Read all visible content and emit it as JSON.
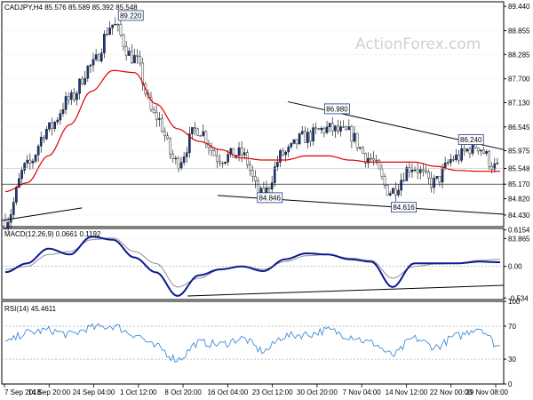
{
  "chart_data": {
    "type": "candlestick",
    "symbol": "CADJPY",
    "timeframe": "H4",
    "header": "CADJPY,H4  85.576 85.589 85.392 85.548",
    "watermark": "ActionForex.com",
    "price_panel": {
      "ylim": [
        84.15,
        89.55
      ],
      "y_ticks": [
        "89.440",
        "88.855",
        "88.285",
        "87.700",
        "87.130",
        "86.545",
        "85.975",
        "85.548",
        "85.170",
        "84.820",
        "84.430",
        "83.865"
      ],
      "last_price": 85.548,
      "level_line": 85.17,
      "ma_values": [
        84.99,
        85.2,
        85.85,
        86.6,
        87.4,
        87.9,
        87.85,
        87.1,
        86.5,
        86.2,
        86.0,
        85.8,
        85.75,
        85.75,
        85.85,
        85.85,
        85.75,
        85.7,
        85.7,
        85.7,
        85.6,
        85.5,
        85.48,
        85.48
      ],
      "close_values": [
        84.3,
        85.6,
        86.5,
        87.2,
        88.0,
        89.0,
        88.2,
        86.8,
        85.7,
        86.5,
        85.8,
        85.9,
        84.9,
        85.9,
        86.3,
        86.5,
        86.4,
        85.8,
        85.0,
        85.6,
        85.2,
        85.8,
        86.1,
        85.55
      ],
      "price_labels": [
        {
          "text": "89.220",
          "value": 89.22,
          "x_frac": 0.257
        },
        {
          "text": "86.980",
          "value": 86.98,
          "x_frac": 0.668
        },
        {
          "text": "86.240",
          "value": 86.24,
          "x_frac": 0.935
        },
        {
          "text": "84.846",
          "value": 84.846,
          "x_frac": 0.534
        },
        {
          "text": "84.616",
          "value": 84.616,
          "x_frac": 0.801
        }
      ],
      "trendlines": [
        {
          "from": [
            0.57,
            87.15
          ],
          "to": [
            1.0,
            86.0
          ]
        },
        {
          "from": [
            0.43,
            84.9
          ],
          "to": [
            1.0,
            84.45
          ]
        },
        {
          "from": [
            0.0,
            84.3
          ],
          "to": [
            0.16,
            84.6
          ]
        }
      ]
    },
    "macd_panel": {
      "label": "MACD(12,26,9) 0.0661 0.1192",
      "ylim": [
        -0.56,
        0.64
      ],
      "y_ticks": [
        "0.6154",
        "0.00",
        "-0.534"
      ],
      "macd_values": [
        -0.1,
        0.05,
        0.3,
        0.2,
        0.5,
        0.45,
        0.15,
        -0.1,
        -0.5,
        -0.15,
        -0.05,
        0.0,
        -0.08,
        0.12,
        0.22,
        0.2,
        0.12,
        0.08,
        -0.35,
        0.05,
        0.05,
        0.05,
        0.08,
        0.07
      ],
      "signal_values": [
        -0.05,
        0.0,
        0.2,
        0.25,
        0.45,
        0.48,
        0.25,
        0.05,
        -0.35,
        -0.2,
        -0.05,
        0.0,
        -0.05,
        0.08,
        0.18,
        0.2,
        0.14,
        0.1,
        -0.2,
        0.0,
        0.04,
        0.05,
        0.1,
        0.12
      ],
      "trendlines": [
        {
          "from": [
            0.37,
            -0.5
          ],
          "to": [
            1.0,
            -0.32
          ]
        }
      ]
    },
    "rsi_panel": {
      "label": "RSI(14) 45.4611",
      "ylim": [
        0,
        100
      ],
      "y_ticks": [
        "100",
        "70",
        "30",
        "0"
      ],
      "levels": [
        70,
        30
      ],
      "rsi_values": [
        50,
        62,
        65,
        60,
        68,
        70,
        60,
        45,
        30,
        50,
        48,
        55,
        40,
        58,
        60,
        65,
        58,
        50,
        35,
        55,
        45,
        58,
        68,
        45
      ]
    },
    "x_labels": [
      "7 Sep 2018",
      "14 Sep 20:00",
      "24 Sep 04:00",
      "1 Oct 12:00",
      "8 Oct 20:00",
      "16 Oct 04:00",
      "23 Oct 12:00",
      "30 Oct 20:00",
      "7 Nov 04:00",
      "14 Nov 12:00",
      "22 Nov 00:00",
      "29 Nov 08:00"
    ],
    "colors": {
      "bull_candle": "#1a3a88",
      "ma_line": "#e00000",
      "macd_line": "#0a1a90",
      "signal_line": "#909090",
      "rsi_line": "#2b7fd6",
      "trendline": "#000000",
      "label_box_border": "#1a3a88",
      "grid": "#c8c8c8"
    }
  }
}
